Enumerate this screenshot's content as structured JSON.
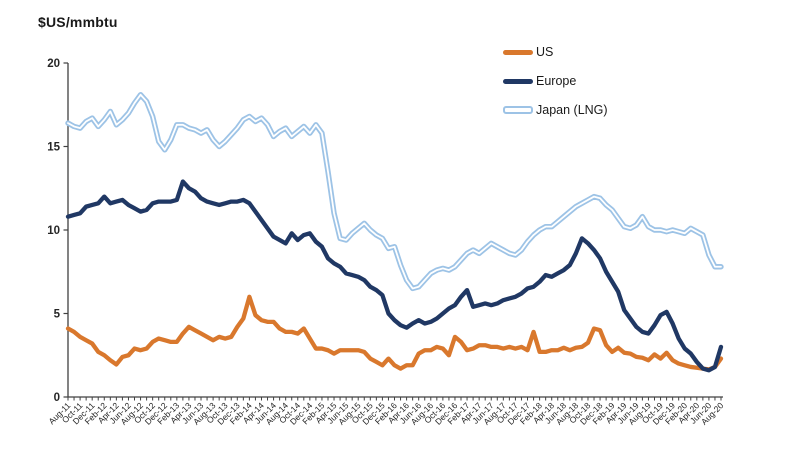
{
  "chart_data": {
    "type": "line",
    "title": "$US/mmbtu",
    "ylabel": "$US/mmbtu",
    "xlabel": "",
    "ylim": [
      0,
      20
    ],
    "yticks": [
      0,
      5,
      10,
      15,
      20
    ],
    "grid": false,
    "legend_position": "top-right",
    "x_start": "Aug-11",
    "x_end": "Aug-20",
    "x_frequency": "monthly",
    "x_tick_labels": [
      "Aug-11",
      "Oct-11",
      "Dec-11",
      "Feb-12",
      "Apr-12",
      "Jun-12",
      "Aug-12",
      "Oct-12",
      "Dec-12",
      "Feb-13",
      "Apr-13",
      "Jun-13",
      "Aug-13",
      "Oct-13",
      "Dec-13",
      "Feb-14",
      "Apr-14",
      "Jun-14",
      "Aug-14",
      "Oct-14",
      "Dec-14",
      "Feb-15",
      "Apr-15",
      "Jun-15",
      "Aug-15",
      "Oct-15",
      "Dec-15",
      "Feb-16",
      "Apr-16",
      "Jun-16",
      "Aug-16",
      "Oct-16",
      "Dec-16",
      "Feb-17",
      "Apr-17",
      "Jun-17",
      "Aug-17",
      "Oct-17",
      "Dec-17",
      "Feb-18",
      "Apr-18",
      "Jun-18",
      "Aug-18",
      "Oct-18",
      "Dec-18",
      "Feb-19",
      "Apr-19",
      "Jun-19",
      "Aug-19",
      "Oct-19",
      "Dec-19",
      "Feb-20",
      "Apr-20",
      "Jun-20",
      "Aug-20"
    ],
    "months_per_tick_label": 2,
    "series": [
      {
        "name": "US",
        "color": "#D9782D",
        "style": "solid",
        "values": [
          4.1,
          3.9,
          3.6,
          3.4,
          3.2,
          2.7,
          2.5,
          2.2,
          1.95,
          2.4,
          2.5,
          2.9,
          2.8,
          2.9,
          3.3,
          3.5,
          3.4,
          3.3,
          3.3,
          3.8,
          4.2,
          4.0,
          3.8,
          3.6,
          3.4,
          3.6,
          3.5,
          3.6,
          4.2,
          4.7,
          6.0,
          4.9,
          4.6,
          4.5,
          4.5,
          4.1,
          3.9,
          3.9,
          3.8,
          4.1,
          3.5,
          2.9,
          2.9,
          2.8,
          2.6,
          2.8,
          2.8,
          2.8,
          2.8,
          2.7,
          2.3,
          2.1,
          1.9,
          2.3,
          1.9,
          1.7,
          1.9,
          1.9,
          2.6,
          2.8,
          2.8,
          3.0,
          2.9,
          2.5,
          3.6,
          3.3,
          2.8,
          2.9,
          3.1,
          3.1,
          3.0,
          3.0,
          2.9,
          3.0,
          2.9,
          3.0,
          2.8,
          3.9,
          2.7,
          2.7,
          2.8,
          2.8,
          2.95,
          2.8,
          2.95,
          3.0,
          3.25,
          4.1,
          4.0,
          3.1,
          2.7,
          2.95,
          2.65,
          2.6,
          2.4,
          2.35,
          2.2,
          2.55,
          2.3,
          2.65,
          2.2,
          2.0,
          1.9,
          1.8,
          1.75,
          1.7,
          1.65,
          1.8,
          2.3
        ]
      },
      {
        "name": "Europe",
        "color": "#203864",
        "style": "solid",
        "values": [
          10.8,
          10.9,
          11.0,
          11.4,
          11.5,
          11.6,
          12.0,
          11.6,
          11.7,
          11.8,
          11.5,
          11.3,
          11.1,
          11.2,
          11.6,
          11.7,
          11.7,
          11.7,
          11.8,
          12.9,
          12.5,
          12.3,
          11.9,
          11.7,
          11.6,
          11.5,
          11.6,
          11.7,
          11.7,
          11.8,
          11.6,
          11.1,
          10.6,
          10.1,
          9.6,
          9.4,
          9.2,
          9.8,
          9.4,
          9.7,
          9.8,
          9.3,
          9.0,
          8.3,
          8.0,
          7.8,
          7.4,
          7.3,
          7.2,
          7.0,
          6.6,
          6.4,
          6.1,
          5.0,
          4.6,
          4.3,
          4.15,
          4.4,
          4.6,
          4.4,
          4.5,
          4.7,
          5.0,
          5.3,
          5.5,
          6.0,
          6.4,
          5.4,
          5.5,
          5.6,
          5.5,
          5.6,
          5.8,
          5.9,
          6.0,
          6.2,
          6.5,
          6.6,
          6.9,
          7.3,
          7.2,
          7.4,
          7.6,
          7.9,
          8.6,
          9.5,
          9.2,
          8.8,
          8.3,
          7.5,
          6.9,
          6.3,
          5.2,
          4.7,
          4.2,
          3.9,
          3.8,
          4.3,
          4.9,
          5.1,
          4.4,
          3.5,
          2.9,
          2.6,
          2.1,
          1.7,
          1.6,
          1.8,
          3.0
        ]
      },
      {
        "name": "Japan (LNG)",
        "color": "#9DC3E6",
        "inner_color": "#FFFFFF",
        "style": "outlined",
        "values": [
          16.4,
          16.2,
          16.1,
          16.5,
          16.7,
          16.2,
          16.6,
          17.1,
          16.3,
          16.6,
          17.0,
          17.6,
          18.1,
          17.7,
          16.8,
          15.3,
          14.8,
          15.4,
          16.3,
          16.3,
          16.1,
          16.0,
          15.8,
          16.0,
          15.4,
          15.0,
          15.3,
          15.7,
          16.1,
          16.6,
          16.8,
          16.5,
          16.7,
          16.3,
          15.6,
          15.9,
          16.1,
          15.6,
          15.9,
          16.2,
          15.8,
          16.3,
          15.8,
          13.5,
          11.0,
          9.5,
          9.4,
          9.8,
          10.1,
          10.4,
          10.0,
          9.7,
          9.5,
          8.9,
          9.0,
          7.9,
          7.0,
          6.5,
          6.6,
          7.0,
          7.4,
          7.6,
          7.7,
          7.6,
          7.8,
          8.2,
          8.6,
          8.8,
          8.6,
          8.9,
          9.2,
          9.0,
          8.8,
          8.6,
          8.5,
          8.8,
          9.3,
          9.7,
          10.0,
          10.2,
          10.2,
          10.5,
          10.8,
          11.1,
          11.4,
          11.6,
          11.8,
          12.0,
          11.9,
          11.5,
          11.2,
          10.7,
          10.2,
          10.1,
          10.3,
          10.8,
          10.2,
          10.0,
          10.0,
          9.9,
          10.0,
          9.9,
          9.8,
          10.1,
          9.9,
          9.7,
          8.5,
          7.8,
          7.8
        ]
      }
    ],
    "axis_color": "#404040",
    "tick_text_color": "#262626"
  }
}
